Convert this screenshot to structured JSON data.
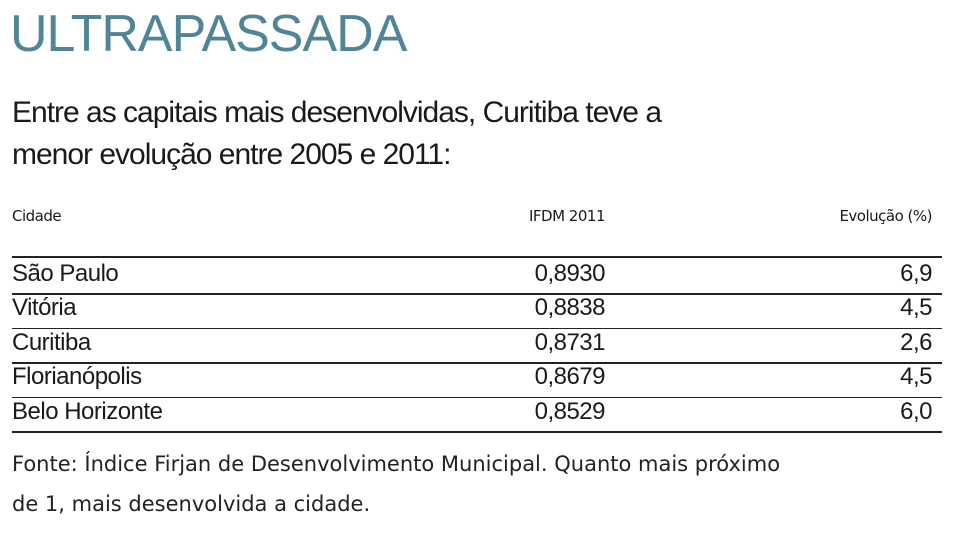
{
  "header": {
    "title": "ULTRAPASSADA",
    "subtitle": [
      "Entre as capitais mais desenvolvidas, Curitiba teve a",
      "menor evolução entre 2005 e 2011:"
    ]
  },
  "table": {
    "columns": [
      "Cidade",
      "IFDM 2011",
      "Evolução (%)"
    ],
    "rows": [
      [
        "São Paulo",
        "0,8930",
        "6,9"
      ],
      [
        "Vitória",
        "0,8838",
        "4,5"
      ],
      [
        "Curitiba",
        "0,8731",
        "2,6"
      ],
      [
        "Florianópolis",
        "0,8679",
        "4,5"
      ],
      [
        "Belo Horizonte",
        "0,8529",
        "6,0"
      ]
    ]
  },
  "footer": [
    "Fonte: Índice Firjan de Desenvolvimento Municipal. Quanto mais próximo",
    "de 1, mais desenvolvida a cidade."
  ]
}
